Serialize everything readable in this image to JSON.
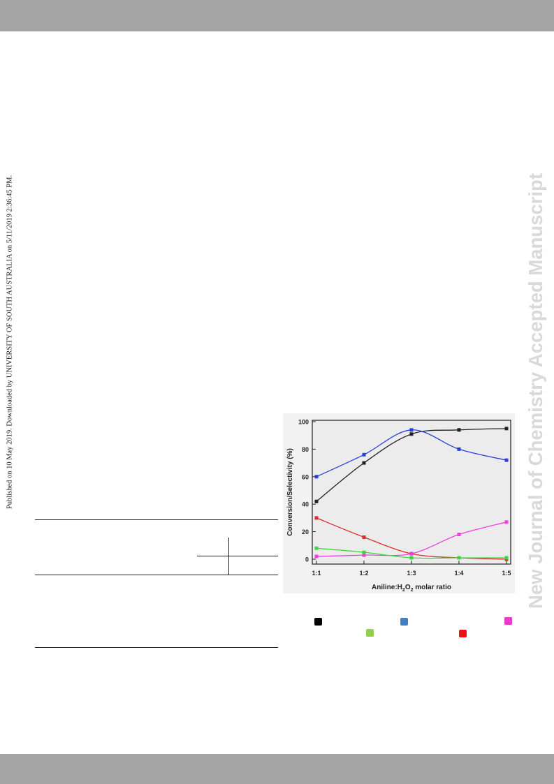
{
  "side_note": "Published on 10 May 2019. Downloaded by UNIVERSITY OF SOUTH AUSTRALIA on 5/11/2019 2:36:45 PM.",
  "watermark": "New Journal of Chemistry Accepted Manuscript",
  "colors": {
    "header_bar": "#a5a5a5",
    "watermark": "#d9d9d9",
    "legend": [
      "#000000",
      "#3f7fc8",
      "#e83cc8",
      "#8fd24a",
      "#ee1111"
    ]
  },
  "chart_data": {
    "type": "line",
    "xlabel": "Aniline:H2O2 molar ratio",
    "xlabel_parts": {
      "pre": "Aniline:H",
      "sub1": "2",
      "mid": "O",
      "sub2": "2",
      "post": " molar ratio"
    },
    "ylabel": "Conversion/Selectivity (%)",
    "categories": [
      "1:1",
      "1:2",
      "1:3",
      "1:4",
      "1:5"
    ],
    "ylim": [
      0,
      100
    ],
    "yticks": [
      "0",
      "20",
      "40",
      "60",
      "80",
      "100"
    ],
    "series": [
      {
        "color": "#222222",
        "values": [
          42,
          70,
          91,
          94,
          95
        ]
      },
      {
        "color": "#2a3fd8",
        "values": [
          60,
          76,
          94,
          80,
          72
        ]
      },
      {
        "color": "#e02a2a",
        "values": [
          30,
          16,
          4,
          1,
          0
        ]
      },
      {
        "color": "#ee3ee0",
        "values": [
          2,
          3,
          4,
          18,
          27
        ]
      },
      {
        "color": "#3ad83a",
        "values": [
          8,
          5,
          1,
          1,
          1
        ]
      }
    ]
  }
}
